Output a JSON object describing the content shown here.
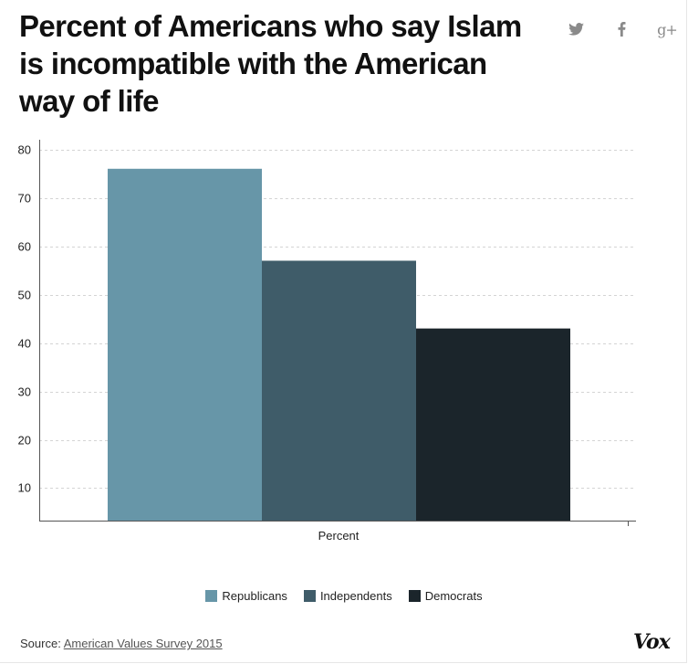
{
  "title": "Percent of Americans who say Islam is incompatible with the American way of life",
  "share": {
    "twitter_icon": "twitter-icon",
    "facebook_icon": "facebook-icon",
    "gplus_icon": "google-plus-icon",
    "gplus_text": "g+"
  },
  "colors": {
    "republicans": "#6796a8",
    "independents": "#3f5c69",
    "democrats": "#1b252b",
    "grid": "#d4d4d4",
    "axis": "#555555"
  },
  "chart_data": {
    "type": "bar",
    "title": "Percent of Americans who say Islam is incompatible with the American way of life",
    "categories": [
      "Percent"
    ],
    "series": [
      {
        "name": "Republicans",
        "values": [
          76
        ]
      },
      {
        "name": "Independents",
        "values": [
          57
        ]
      },
      {
        "name": "Democrats",
        "values": [
          43
        ]
      }
    ],
    "xlabel": "Percent",
    "ylabel": "",
    "ylim": [
      3.3,
      82
    ],
    "yticks": [
      10,
      20,
      30,
      40,
      50,
      60,
      70,
      80
    ],
    "grid": true,
    "legend": "bottom-center"
  },
  "source": {
    "label": "Source:",
    "link_text": "American Values Survey 2015"
  },
  "logo": "Vox"
}
